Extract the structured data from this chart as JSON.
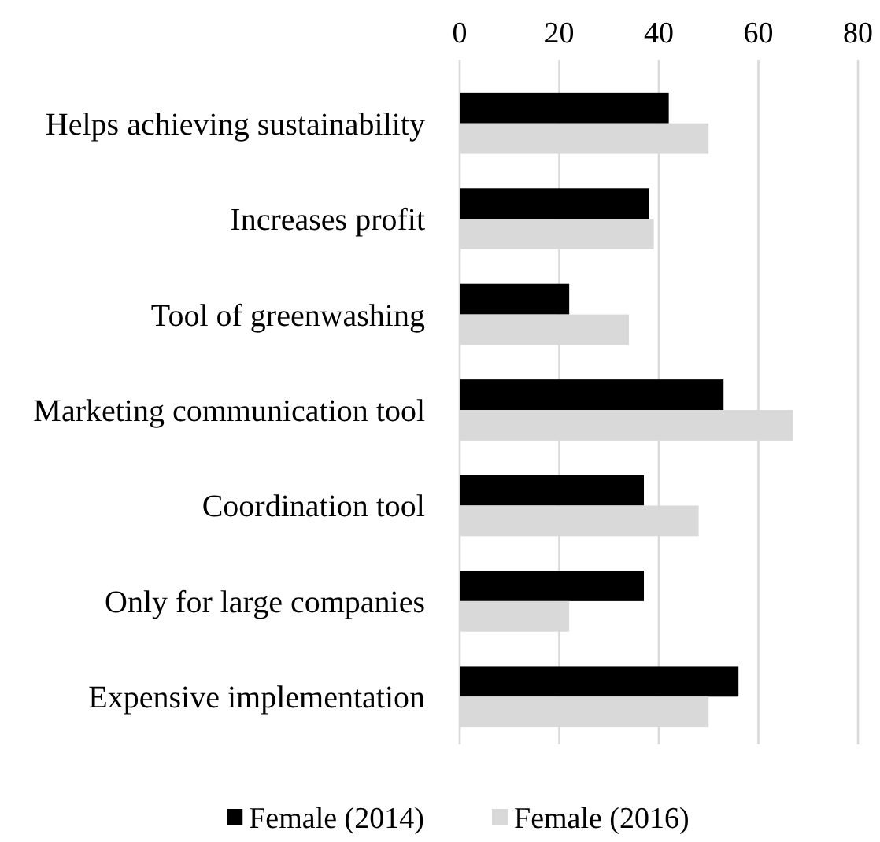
{
  "chart_data": {
    "type": "bar",
    "orientation": "horizontal",
    "categories": [
      "Helps achieving sustainability",
      "Increases profit",
      "Tool of greenwashing",
      "Marketing communication tool",
      "Coordination tool",
      "Only for large companies",
      "Expensive implementation"
    ],
    "series": [
      {
        "name": "Female (2014)",
        "color": "#000000",
        "values": [
          42,
          38,
          22,
          53,
          37,
          37,
          56
        ]
      },
      {
        "name": "Female (2016)",
        "color": "#d9d9d9",
        "values": [
          50,
          39,
          34,
          67,
          48,
          22,
          50
        ]
      }
    ],
    "xlim": [
      0,
      80
    ],
    "xticks": [
      0,
      20,
      40,
      60,
      80
    ],
    "grid": "x",
    "legend": "bottom"
  }
}
